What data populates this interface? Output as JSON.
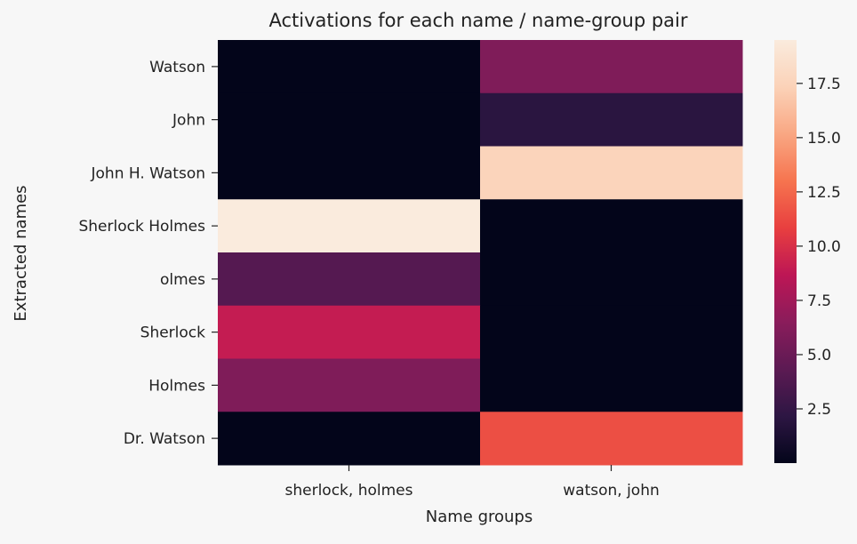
{
  "chart_data": {
    "type": "heatmap",
    "title": "Activations for each name / name-group pair",
    "xlabel": "Name groups",
    "ylabel": "Extracted names",
    "columns": [
      "sherlock, holmes",
      "watson, john"
    ],
    "rows": [
      "Watson",
      "John",
      "John H. Watson",
      "Sherlock Holmes",
      "olmes",
      "Sherlock",
      "Holmes",
      "Dr. Watson"
    ],
    "values": [
      [
        0,
        6
      ],
      [
        0,
        2
      ],
      [
        0,
        17.5
      ],
      [
        19.5,
        0
      ],
      [
        4,
        0
      ],
      [
        9,
        0
      ],
      [
        6,
        0
      ],
      [
        0,
        11.5
      ]
    ],
    "colorbar": {
      "min": 0,
      "max": 19.5,
      "ticks": [
        2.5,
        5.0,
        7.5,
        10.0,
        12.5,
        15.0,
        17.5
      ],
      "tick_labels": [
        "2.5",
        "5.0",
        "7.5",
        "10.0",
        "12.5",
        "15.0",
        "17.5"
      ]
    },
    "colormap": [
      "#03051a",
      "#2d1643",
      "#5c1a53",
      "#8a1c5b",
      "#bd1655",
      "#e83f3f",
      "#f6744f",
      "#f9a783",
      "#fbd2b8",
      "#faebdd"
    ]
  }
}
